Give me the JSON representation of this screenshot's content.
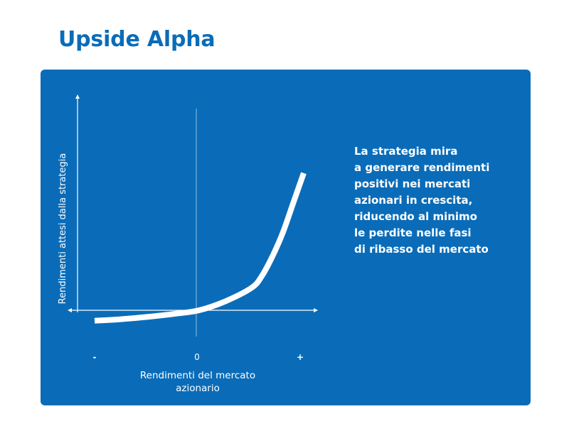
{
  "page": {
    "title": "Upside Alpha"
  },
  "description": "La strategia mira\na generare rendimenti\npositivi nei mercati\nazionari in crescita,\nriducendo al minimo\nle perdite nelle fasi\ndi ribasso del mercato",
  "colors": {
    "title": "#0A6CB8",
    "panel_background": "#0A6CB8",
    "curve": "#ffffff",
    "axes": "#ffffff",
    "text": "#ffffff"
  },
  "chart_data": {
    "type": "line",
    "title": "",
    "xlabel_lines": [
      "Rendimenti del mercato",
      "azionario"
    ],
    "ylabel": "Rendimenti attesi dalla strategia",
    "x_ticks": [
      {
        "label": "-",
        "value": -1
      },
      {
        "label": "0",
        "value": 0
      },
      {
        "label": "+",
        "value": 1
      }
    ],
    "xlim": [
      -1,
      1
    ],
    "grid": false,
    "legend": "none",
    "series": [
      {
        "x": [
          -1,
          -0.75,
          -0.5,
          -0.25,
          0,
          0.25,
          0.5,
          0.6,
          0.7,
          0.8,
          0.9,
          1
        ],
        "y": [
          -0.07,
          -0.06,
          -0.045,
          -0.025,
          0,
          0.06,
          0.15,
          0.23,
          0.36,
          0.52,
          0.72,
          0.92
        ]
      }
    ]
  }
}
